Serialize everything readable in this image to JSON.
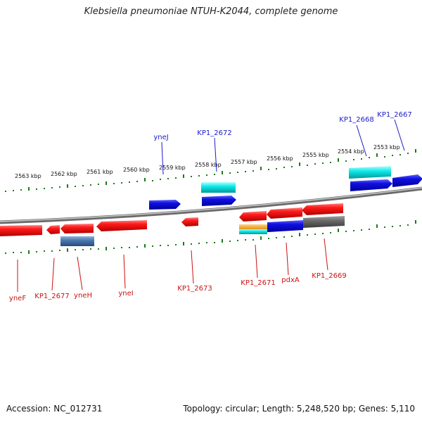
{
  "title": "Klebsiella pneumoniae NTUH-K2044, complete genome",
  "footer": {
    "accession": "Accession: NC_012731",
    "summary": "Topology: circular; Length: 5,248,520 bp; Genes: 5,110"
  },
  "colors": {
    "forward_label": "#1a1acc",
    "reverse_label": "#cc1111",
    "backbone": "#808080",
    "ruler": "#1a7a1a"
  },
  "ruler_labels": [
    "2563 kbp",
    "2562 kbp",
    "2561 kbp",
    "2560 kbp",
    "2559 kbp",
    "2558 kbp",
    "2557 kbp",
    "2556 kbp",
    "2555 kbp",
    "2554 kbp",
    "2553 kbp"
  ],
  "forward_labels": [
    "yneJ",
    "KP1_2672",
    "KP1_2668",
    "KP1_2667"
  ],
  "reverse_labels": [
    "yneF",
    "KP1_2677",
    "yneH",
    "yneI",
    "KP1_2673",
    "KP1_2671",
    "pdxA",
    "KP1_2669"
  ]
}
